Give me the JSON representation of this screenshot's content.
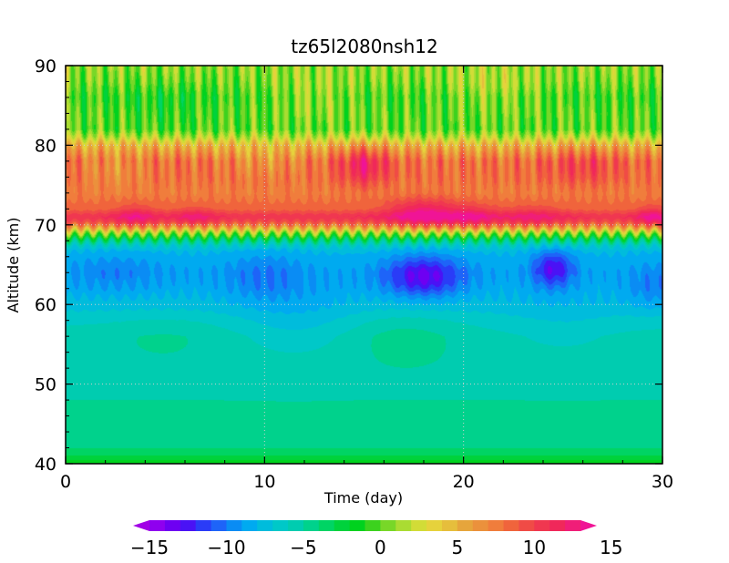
{
  "chart_data": {
    "type": "heatmap",
    "title": "tz65l2080nsh12",
    "xlabel": "Time (day)",
    "ylabel": "Altitude (km)",
    "xlim": [
      0,
      30
    ],
    "ylim": [
      40,
      90
    ],
    "xticks": [
      0,
      10,
      20,
      30
    ],
    "yticks": [
      40,
      50,
      60,
      70,
      80,
      90
    ],
    "grid": "dotted at interior ticks",
    "colorbar": {
      "range": [
        -16,
        16
      ],
      "step": 1,
      "ticks": [
        -15,
        -10,
        -5,
        0,
        5,
        10,
        15
      ],
      "extend": "both",
      "placement": "bottom"
    },
    "profile_altitude_km": [
      40,
      41,
      42,
      45,
      48,
      50,
      53,
      56,
      58,
      60,
      62,
      64,
      66,
      67,
      67.8,
      68.6,
      69.4,
      70.2,
      71,
      72,
      74,
      76,
      78,
      80,
      81,
      82,
      84,
      86,
      88,
      90
    ],
    "profile_value": [
      -1,
      -3,
      -4,
      -4.8,
      -5,
      -5.2,
      -5.3,
      -5.5,
      -6.3,
      -7.5,
      -8.3,
      -8.6,
      -8.2,
      -7.5,
      -5,
      -1,
      4,
      9,
      11,
      8.5,
      7.5,
      8,
      8,
      5,
      2,
      0,
      0,
      -0.5,
      0.5,
      1
    ],
    "lower_anomalies": [
      {
        "t": 18.0,
        "alt": 63.5,
        "dt": 1.9,
        "dalt": 2.5,
        "amp": -5.0
      },
      {
        "t": 24.5,
        "alt": 64.5,
        "dt": 1.0,
        "dalt": 2.3,
        "amp": -4.5
      },
      {
        "t": 10.0,
        "alt": 63.5,
        "dt": 2.0,
        "dalt": 3.0,
        "amp": -1.5
      },
      {
        "t": 2.5,
        "alt": 64.0,
        "dt": 2.5,
        "dalt": 2.5,
        "amp": -1.2
      },
      {
        "t": 29.5,
        "alt": 62.0,
        "dt": 1.2,
        "dalt": 3.0,
        "amp": -1.5
      },
      {
        "t": 11.5,
        "alt": 57.5,
        "dt": 3.0,
        "dalt": 4.5,
        "amp": -1.2
      },
      {
        "t": 25.0,
        "alt": 57.0,
        "dt": 3.0,
        "dalt": 4.0,
        "amp": -0.8
      },
      {
        "t": 17.0,
        "alt": 56.0,
        "dt": 2.5,
        "dalt": 3.5,
        "amp": 1.0
      },
      {
        "t": 5.0,
        "alt": 56.0,
        "dt": 3.0,
        "dalt": 3.0,
        "amp": 0.6
      }
    ],
    "upper_anomalies": [
      {
        "t": 18.0,
        "alt": 71.5,
        "dt": 1.8,
        "dalt": 1.8,
        "amp": 4.0
      },
      {
        "t": 20.5,
        "alt": 71.0,
        "dt": 1.2,
        "dalt": 1.5,
        "amp": 2.5
      },
      {
        "t": 3.5,
        "alt": 71.0,
        "dt": 1.0,
        "dalt": 1.5,
        "amp": 2.5
      },
      {
        "t": 6.5,
        "alt": 71.0,
        "dt": 1.0,
        "dalt": 1.2,
        "amp": 2.0
      },
      {
        "t": 29.5,
        "alt": 71.0,
        "dt": 0.8,
        "dalt": 1.3,
        "amp": 3.0
      },
      {
        "t": 23.5,
        "alt": 71.0,
        "dt": 1.5,
        "dalt": 1.4,
        "amp": 2.0
      },
      {
        "t": 15.0,
        "alt": 77.5,
        "dt": 1.2,
        "dalt": 2.5,
        "amp": 4.0
      },
      {
        "t": 26.0,
        "alt": 77.5,
        "dt": 1.8,
        "dalt": 2.5,
        "amp": 2.0
      },
      {
        "t": 2.5,
        "alt": 77.0,
        "dt": 1.5,
        "dalt": 2.0,
        "amp": -1.5
      },
      {
        "t": 10.0,
        "alt": 78.0,
        "dt": 2.0,
        "dalt": 2.0,
        "amp": -1.5
      },
      {
        "t": 12.5,
        "alt": 86.0,
        "dt": 2.0,
        "dalt": 3.0,
        "amp": 1.5
      },
      {
        "t": 21.5,
        "alt": 87.0,
        "dt": 2.5,
        "dalt": 3.0,
        "amp": 1.5
      },
      {
        "t": 5.0,
        "alt": 85.0,
        "dt": 2.0,
        "dalt": 3.0,
        "amp": -1.0
      }
    ],
    "wave_amplitude": {
      "mesosphere_upper": 1.6,
      "boundary_ripple_km": 0.45
    }
  },
  "colors": {
    "palette": [
      "#a200e6",
      "#8f00ef",
      "#6e00f2",
      "#4a12f5",
      "#2a3cf7",
      "#1e64f8",
      "#0a8cf4",
      "#00aaf0",
      "#00bcdc",
      "#00c8c8",
      "#00ccb0",
      "#00d28c",
      "#00d464",
      "#00d23c",
      "#00d21e",
      "#3cd21e",
      "#78d728",
      "#aadc32",
      "#d2dc37",
      "#e6d23c",
      "#e6be3c",
      "#e6a53c",
      "#eb913c",
      "#f07d3c",
      "#f0643c",
      "#f04b46",
      "#f03750",
      "#f0285a",
      "#f01e78",
      "#f01496"
    ]
  }
}
